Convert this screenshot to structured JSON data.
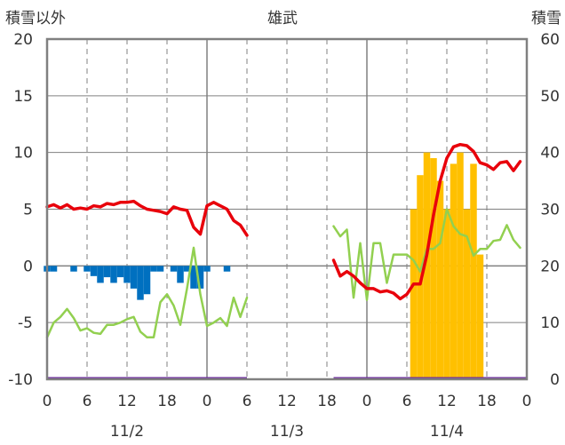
{
  "chart_data": {
    "type": "line",
    "title": "雄武",
    "ylabel_left": "積雪以外",
    "ylabel_right": "積雪",
    "left_ylim": [
      -10,
      20
    ],
    "left_ticks": [
      20,
      15,
      10,
      5,
      0,
      -5,
      -10
    ],
    "right_ylim": [
      0,
      60
    ],
    "right_ticks": [
      60,
      50,
      40,
      30,
      20,
      10,
      0
    ],
    "x_range_hours": [
      0,
      72
    ],
    "x_tick_labels": [
      "0",
      "6",
      "12",
      "18",
      "0",
      "6",
      "12",
      "18",
      "0",
      "6",
      "12",
      "18",
      "0"
    ],
    "date_labels": [
      "11/2",
      "11/3",
      "11/4"
    ],
    "grid": true,
    "colors": {
      "temperature": "#e8000b",
      "green_series": "#92d050",
      "blue_bars": "#0070c0",
      "snow_depth_bars": "#ffc000",
      "baseline": "#7030a0",
      "frame": "#808080",
      "grid": "#808080"
    },
    "series": [
      {
        "key": "temperature",
        "axis": "left",
        "segments": [
          {
            "x": [
              0,
              1,
              2,
              3,
              4,
              5,
              6,
              7,
              8,
              9,
              10,
              11,
              12,
              13,
              14,
              15,
              16,
              17,
              18,
              19,
              20,
              21,
              22,
              23,
              24,
              25,
              26,
              27,
              28,
              29,
              30
            ],
            "y": [
              5.2,
              5.4,
              5.1,
              5.4,
              5.0,
              5.1,
              5.0,
              5.3,
              5.2,
              5.5,
              5.4,
              5.6,
              5.6,
              5.7,
              5.3,
              5.0,
              4.9,
              4.8,
              4.6,
              5.2,
              5.0,
              4.9,
              3.4,
              2.8,
              5.3,
              5.6,
              5.3,
              5.0,
              4.0,
              3.6,
              2.7
            ]
          },
          {
            "x": [
              43,
              44,
              45,
              46,
              47,
              48,
              49,
              50,
              51,
              52,
              53,
              54,
              55,
              56,
              57,
              58,
              59,
              60,
              61,
              62,
              63,
              64,
              65,
              66,
              67,
              68,
              69,
              70,
              71
            ],
            "y": [
              0.5,
              -0.9,
              -0.5,
              -0.9,
              -1.5,
              -2.0,
              -2.0,
              -2.3,
              -2.2,
              -2.4,
              -2.9,
              -2.5,
              -1.6,
              -1.6,
              1.0,
              4.5,
              7.5,
              9.5,
              10.5,
              10.7,
              10.6,
              10.1,
              9.1,
              8.9,
              8.5,
              9.1,
              9.2,
              8.4,
              9.2
            ]
          }
        ]
      },
      {
        "key": "green",
        "axis": "left",
        "segments": [
          {
            "x": [
              0,
              1,
              2,
              3,
              4,
              5,
              6,
              7,
              8,
              9,
              10,
              11,
              12,
              13,
              14,
              15,
              16,
              17,
              18,
              19,
              20,
              21,
              22,
              23,
              24,
              25,
              26,
              27,
              28,
              29,
              30
            ],
            "y": [
              -6.3,
              -5.0,
              -4.5,
              -3.8,
              -4.6,
              -5.7,
              -5.5,
              -5.9,
              -6.0,
              -5.2,
              -5.2,
              -5.0,
              -4.7,
              -4.5,
              -5.8,
              -6.3,
              -6.3,
              -3.2,
              -2.5,
              -3.5,
              -5.2,
              -2.0,
              1.6,
              -2.5,
              -5.3,
              -5.0,
              -4.6,
              -5.3,
              -2.8,
              -4.5,
              -2.8
            ]
          },
          {
            "x": [
              43,
              44,
              45,
              46,
              47,
              48,
              49,
              50,
              51,
              52,
              53,
              54,
              55,
              56,
              57,
              58,
              59,
              60,
              61,
              62,
              63,
              64,
              65,
              66,
              67,
              68,
              69,
              70,
              71
            ],
            "y": [
              3.5,
              2.6,
              3.2,
              -2.8,
              2.0,
              -3.0,
              2.0,
              2.0,
              -1.5,
              1.0,
              1.0,
              1.0,
              0.5,
              -0.5,
              1.5,
              1.5,
              2.0,
              5.0,
              3.5,
              2.8,
              2.6,
              0.9,
              1.5,
              1.5,
              2.2,
              2.3,
              3.6,
              2.3,
              1.6
            ]
          }
        ]
      },
      {
        "key": "blue_bars",
        "axis": "left",
        "x": [
          0,
          1,
          4,
          6,
          7,
          8,
          9,
          10,
          11,
          12,
          13,
          14,
          15,
          16,
          17,
          19,
          20,
          21,
          22,
          23,
          24,
          27
        ],
        "y": [
          -0.5,
          -0.5,
          -0.5,
          -0.5,
          -0.9,
          -1.5,
          -1.0,
          -1.5,
          -1.0,
          -1.5,
          -2.0,
          -3.0,
          -2.5,
          -0.5,
          -0.5,
          -0.5,
          -1.5,
          -0.5,
          -2.0,
          -2.0,
          -0.5,
          -0.5
        ]
      },
      {
        "key": "snow_depth",
        "axis": "right",
        "x": [
          55,
          56,
          57,
          58,
          59,
          60,
          61,
          62,
          63,
          64,
          65
        ],
        "y": [
          30,
          36,
          40,
          39,
          35,
          30,
          38,
          40,
          30,
          38,
          22
        ]
      }
    ]
  }
}
